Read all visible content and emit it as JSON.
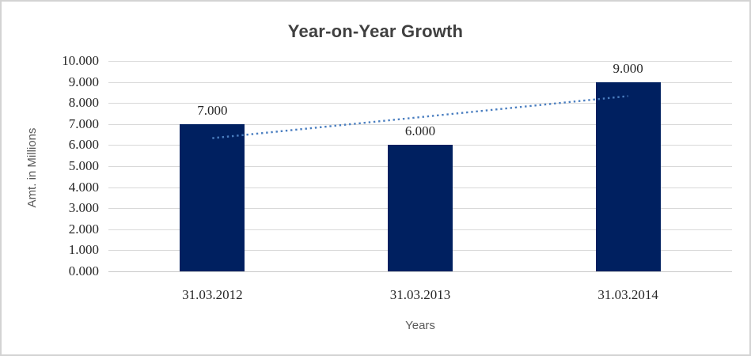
{
  "chart_data": {
    "type": "bar",
    "title": "Year-on-Year Growth",
    "xlabel": "Years",
    "ylabel": "Amt. in Millions",
    "categories": [
      "31.03.2012",
      "31.03.2013",
      "31.03.2014"
    ],
    "series": [
      {
        "name": "Amt. in Millions",
        "values": [
          7,
          6,
          9
        ],
        "data_labels": [
          "7.000",
          "6.000",
          "9.000"
        ],
        "color": "#002060"
      }
    ],
    "ylim": [
      0,
      10
    ],
    "ytick_step": 1,
    "ytick_labels": [
      "0.000",
      "1.000",
      "2.000",
      "3.000",
      "4.000",
      "5.000",
      "6.000",
      "7.000",
      "8.000",
      "9.000",
      "10.000"
    ],
    "grid": true,
    "legend_position": "none",
    "trendline": {
      "type": "linear",
      "style": "dotted",
      "color": "#4a7ec0",
      "start_category_index": 0,
      "start_value": 6.33,
      "end_category_index": 2,
      "end_value": 8.33
    }
  },
  "colors": {
    "bar_fill": "#002060",
    "trendline": "#4a7ec0",
    "gridline": "#d9d9d9",
    "title_text": "#404040",
    "tick_text": "#262626",
    "axis_title_text": "#595959",
    "frame_border": "#d3d3d3",
    "background": "#ffffff"
  }
}
